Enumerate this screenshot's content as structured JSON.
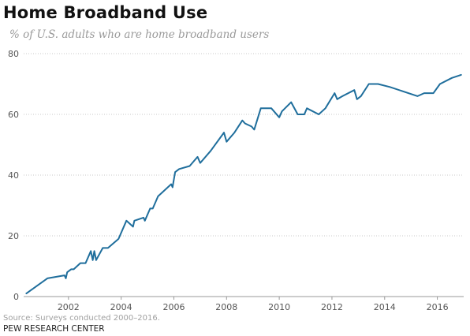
{
  "chart_data": {
    "type": "line",
    "title": "Home Broadband Use",
    "subtitle": "% of U.S. adults who are home broadband users",
    "xlabel": "",
    "ylabel": "",
    "xlim": [
      2000.0,
      2017.0
    ],
    "ylim": [
      0,
      80
    ],
    "x_ticks": [
      "2002",
      "2004",
      "2006",
      "2008",
      "2010",
      "2012",
      "2014",
      "2016"
    ],
    "y_ticks": [
      "0",
      "20",
      "40",
      "60",
      "80"
    ],
    "grid": true,
    "legend": "none",
    "color": "#1f6e9c",
    "series": [
      {
        "x": [
          2000.4,
          2001.2,
          2001.85,
          2001.9,
          2001.95,
          2002.1,
          2002.2,
          2002.45,
          2002.65,
          2002.85,
          2002.92,
          2002.98,
          2003.05,
          2003.3,
          2003.5,
          2003.9,
          2004.2,
          2004.45,
          2004.5,
          2004.85,
          2004.9,
          2005.1,
          2005.2,
          2005.4,
          2005.9,
          2005.95,
          2006.05,
          2006.2,
          2006.6,
          2006.9,
          2007.0,
          2007.4,
          2007.9,
          2008.0,
          2008.3,
          2008.6,
          2008.7,
          2008.95,
          2009.05,
          2009.3,
          2009.7,
          2010.0,
          2010.1,
          2010.45,
          2010.7,
          2010.95,
          2011.05,
          2011.5,
          2011.75,
          2012.1,
          2012.2,
          2012.4,
          2012.85,
          2012.95,
          2013.1,
          2013.4,
          2013.75,
          2014.2,
          2015.25,
          2015.5,
          2015.85,
          2016.1,
          2016.55,
          2016.9
        ],
        "y": [
          1,
          6,
          7,
          6,
          8,
          9,
          9,
          11,
          11,
          15,
          12,
          15,
          12,
          16,
          16,
          19,
          25,
          23,
          25,
          26,
          25,
          29,
          29,
          33,
          37,
          36,
          41,
          42,
          43,
          46,
          44,
          48,
          54,
          51,
          54,
          58,
          57,
          56,
          55,
          62,
          62,
          59,
          61,
          64,
          60,
          60,
          62,
          60,
          62,
          67,
          65,
          66,
          68,
          65,
          66,
          70,
          70,
          69,
          66,
          67,
          67,
          70,
          72,
          73
        ]
      }
    ]
  },
  "footer": {
    "source": "Source: Surveys conducted 2000–2016.",
    "credit": "PEW RESEARCH CENTER"
  }
}
